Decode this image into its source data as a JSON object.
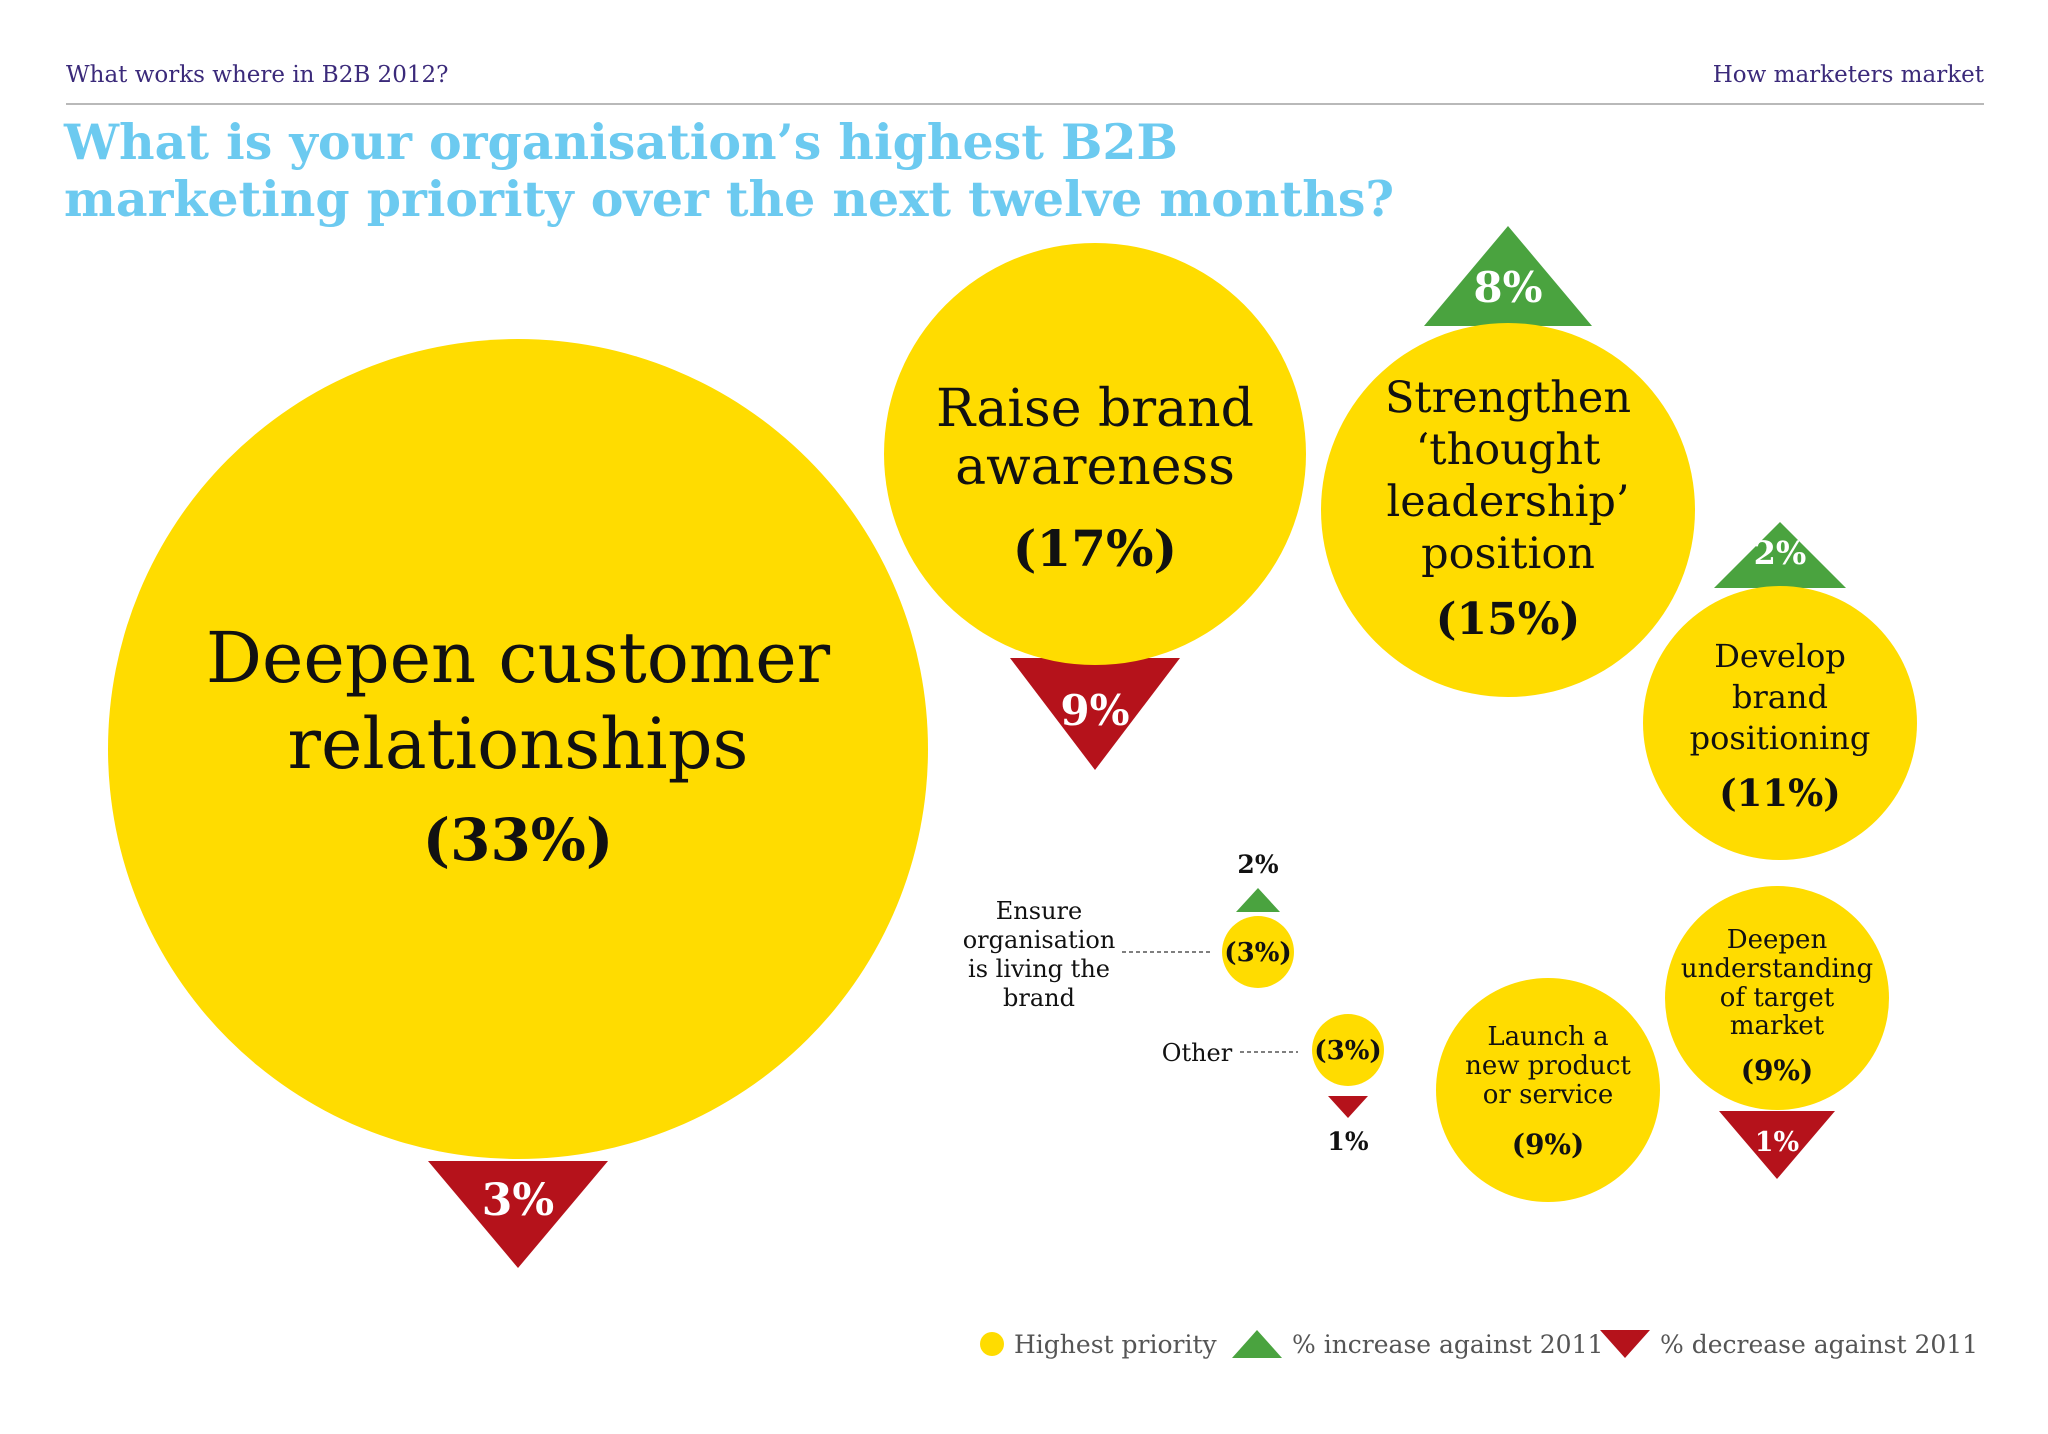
{
  "header": {
    "left": "What works where in B2B 2012?",
    "right": "How marketers market"
  },
  "title": "What is your organisation’s highest B2B marketing priority over the next twelve months?",
  "colors": {
    "priority": "#ffdc00",
    "increase": "#4aa33f",
    "decrease": "#b5121b",
    "text": "#111111",
    "title": "#6ccaf0"
  },
  "chart_data": {
    "type": "bubble",
    "title": "What is your organisation’s highest B2B marketing priority over the next twelve months?",
    "series": [
      {
        "label": "Deepen customer relationships",
        "value": 33,
        "value_label": "(33%)",
        "change": -3,
        "change_label": "3%"
      },
      {
        "label": "Raise brand awareness",
        "value": 17,
        "value_label": "(17%)",
        "change": -9,
        "change_label": "9%"
      },
      {
        "label": "Strengthen ‘thought leadership’ position",
        "value": 15,
        "value_label": "(15%)",
        "change": 8,
        "change_label": "8%"
      },
      {
        "label": "Develop brand positioning",
        "value": 11,
        "value_label": "(11%)",
        "change": 2,
        "change_label": "2%"
      },
      {
        "label": "Deepen understanding of target market",
        "value": 9,
        "value_label": "(9%)",
        "change": -1,
        "change_label": "1%"
      },
      {
        "label": "Launch a new product or service",
        "value": 9,
        "value_label": "(9%)",
        "change": null,
        "change_label": ""
      },
      {
        "label": "Ensure organisation is living the brand",
        "value": 3,
        "value_label": "(3%)",
        "change": 2,
        "change_label": "2%"
      },
      {
        "label": "Other",
        "value": 3,
        "value_label": "(3%)",
        "change": -1,
        "change_label": "1%"
      }
    ],
    "legend": [
      {
        "key": "priority",
        "label": "Highest priority"
      },
      {
        "key": "increase",
        "label": "% increase against 2011"
      },
      {
        "key": "decrease",
        "label": "% decrease against 2011"
      }
    ]
  }
}
